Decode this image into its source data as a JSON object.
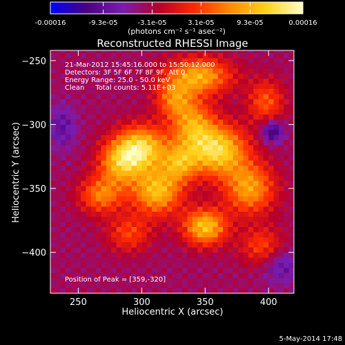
{
  "chart_data": {
    "type": "heatmap",
    "title": "Reconstructed RHESSI Image",
    "xlabel": "Heliocentric X (arcsec)",
    "ylabel": "Heliocentric Y (arcsec)",
    "xlim": [
      228,
      420
    ],
    "ylim": [
      -432,
      -242
    ],
    "x_ticks": [
      "250",
      "300",
      "350",
      "400"
    ],
    "x_tick_values": [
      250,
      300,
      350,
      400
    ],
    "y_ticks": [
      "-250",
      "-300",
      "-350",
      "-400"
    ],
    "y_tick_values": [
      -250,
      -300,
      -350,
      -400
    ],
    "colorbar": {
      "ticks": [
        "-0.00016",
        "-9.3e-05",
        "-3.1e-05",
        "3.1e-05",
        "9.3e-05",
        "0.00016"
      ],
      "tick_values": [
        -0.00016,
        -9.3e-05,
        -3.1e-05,
        3.1e-05,
        9.3e-05,
        0.00016
      ],
      "range": [
        -0.00016,
        0.00016
      ],
      "units": "(photons cm⁻² s⁻¹ asec⁻²)",
      "colormap": [
        "#0000ff",
        "#4b0082",
        "#7a1cb0",
        "#b8002a",
        "#ff2a00",
        "#ff8c00",
        "#ffd21a",
        "#ffffc8"
      ]
    },
    "annotations": [
      "21-Mar-2012 15:45:16.000 to 15:50:12.000",
      "Detectors: 3F 5F 6F 7F 8F 9F, Att 0",
      "Energy Range: 25.0 - 50.0 keV",
      "Clean     Total counts: 5.11E+03"
    ],
    "peak_label": "Position of Peak = [359,-320]",
    "peak_position": [
      359,
      -320
    ],
    "grid": false,
    "sources": [
      {
        "x": 300,
        "y": -318,
        "sx": 14,
        "sy": 12,
        "amp": 0.000155
      },
      {
        "x": 283,
        "y": -330,
        "sx": 12,
        "sy": 12,
        "amp": 0.00012
      },
      {
        "x": 312,
        "y": -352,
        "sx": 14,
        "sy": 13,
        "amp": 0.00014
      },
      {
        "x": 350,
        "y": -380,
        "sx": 12,
        "sy": 10,
        "amp": 0.000145
      },
      {
        "x": 360,
        "y": -320,
        "sx": 16,
        "sy": 14,
        "amp": 0.00016
      },
      {
        "x": 340,
        "y": -300,
        "sx": 12,
        "sy": 14,
        "amp": 0.00011
      },
      {
        "x": 385,
        "y": -350,
        "sx": 14,
        "sy": 14,
        "amp": 0.00012
      },
      {
        "x": 268,
        "y": -355,
        "sx": 12,
        "sy": 10,
        "amp": 0.0001
      },
      {
        "x": 345,
        "y": -262,
        "sx": 18,
        "sy": 10,
        "amp": 0.00013
      },
      {
        "x": 325,
        "y": -280,
        "sx": 10,
        "sy": 10,
        "amp": 9e-05
      },
      {
        "x": 398,
        "y": -282,
        "sx": 10,
        "sy": 12,
        "amp": 8e-05
      },
      {
        "x": 330,
        "y": -330,
        "sx": 10,
        "sy": 10,
        "amp": 0.0001
      },
      {
        "x": 395,
        "y": -395,
        "sx": 12,
        "sy": 10,
        "amp": 7e-05
      },
      {
        "x": 290,
        "y": -385,
        "sx": 12,
        "sy": 10,
        "amp": 7e-05
      },
      {
        "x": 403,
        "y": -305,
        "sx": 6,
        "sy": 6,
        "amp": -9e-05
      },
      {
        "x": 237,
        "y": -302,
        "sx": 8,
        "sy": 12,
        "amp": -5e-05
      },
      {
        "x": 410,
        "y": -410,
        "sx": 10,
        "sy": 10,
        "amp": -5e-05
      }
    ]
  },
  "footer": {
    "timestamp": "5-May-2014 17:48"
  }
}
